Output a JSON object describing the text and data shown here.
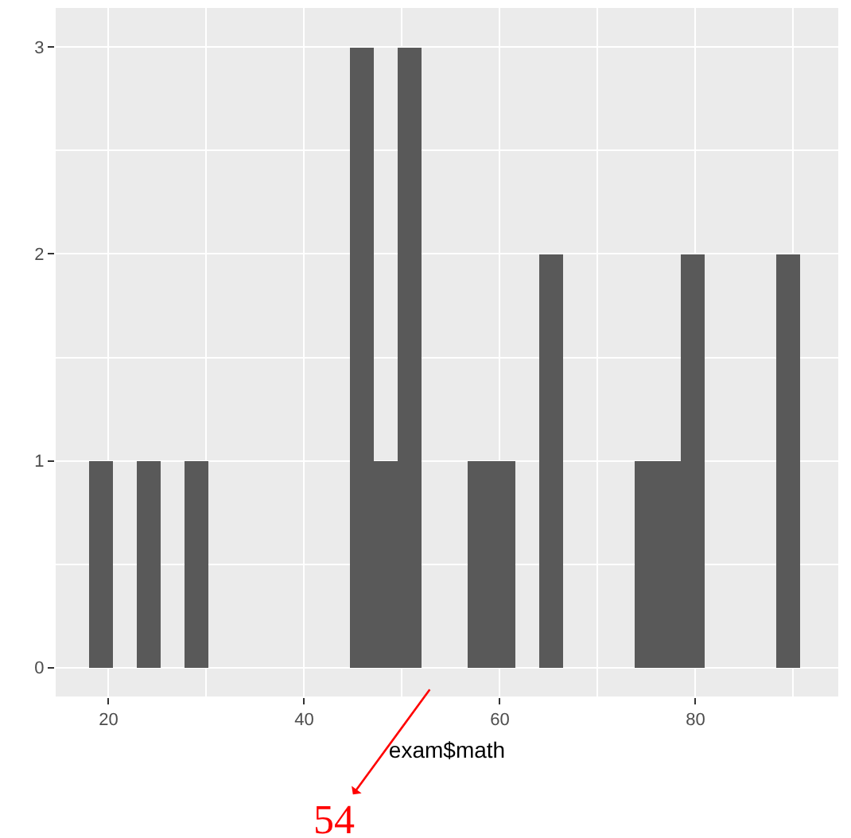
{
  "chart_data": {
    "type": "histogram",
    "xlabel": "exam$math",
    "bins": [
      18.05,
      20.47,
      22.89,
      25.31,
      27.73,
      30.15,
      32.57,
      34.99,
      37.41,
      39.83,
      42.25,
      44.67,
      47.09,
      49.51,
      51.93,
      54.35,
      56.77,
      59.19,
      61.61,
      64.03,
      66.45,
      68.87,
      71.29,
      73.71,
      76.13,
      78.55,
      80.97,
      83.39,
      85.81,
      88.23,
      90.65
    ],
    "values": [
      1,
      0,
      1,
      0,
      1,
      0,
      0,
      0,
      0,
      0,
      0,
      3,
      1,
      3,
      0,
      0,
      1,
      1,
      0,
      2,
      0,
      0,
      0,
      1,
      1,
      2,
      0,
      0,
      0,
      2
    ],
    "color": "#595959",
    "xlim": [
      14.6,
      94.6
    ],
    "xticks": [
      20,
      40,
      60,
      80
    ],
    "ylim": [
      -0.14,
      3.19
    ],
    "yticks": [
      0,
      1,
      2,
      3
    ],
    "grid": true,
    "annotations": [
      "54"
    ]
  }
}
